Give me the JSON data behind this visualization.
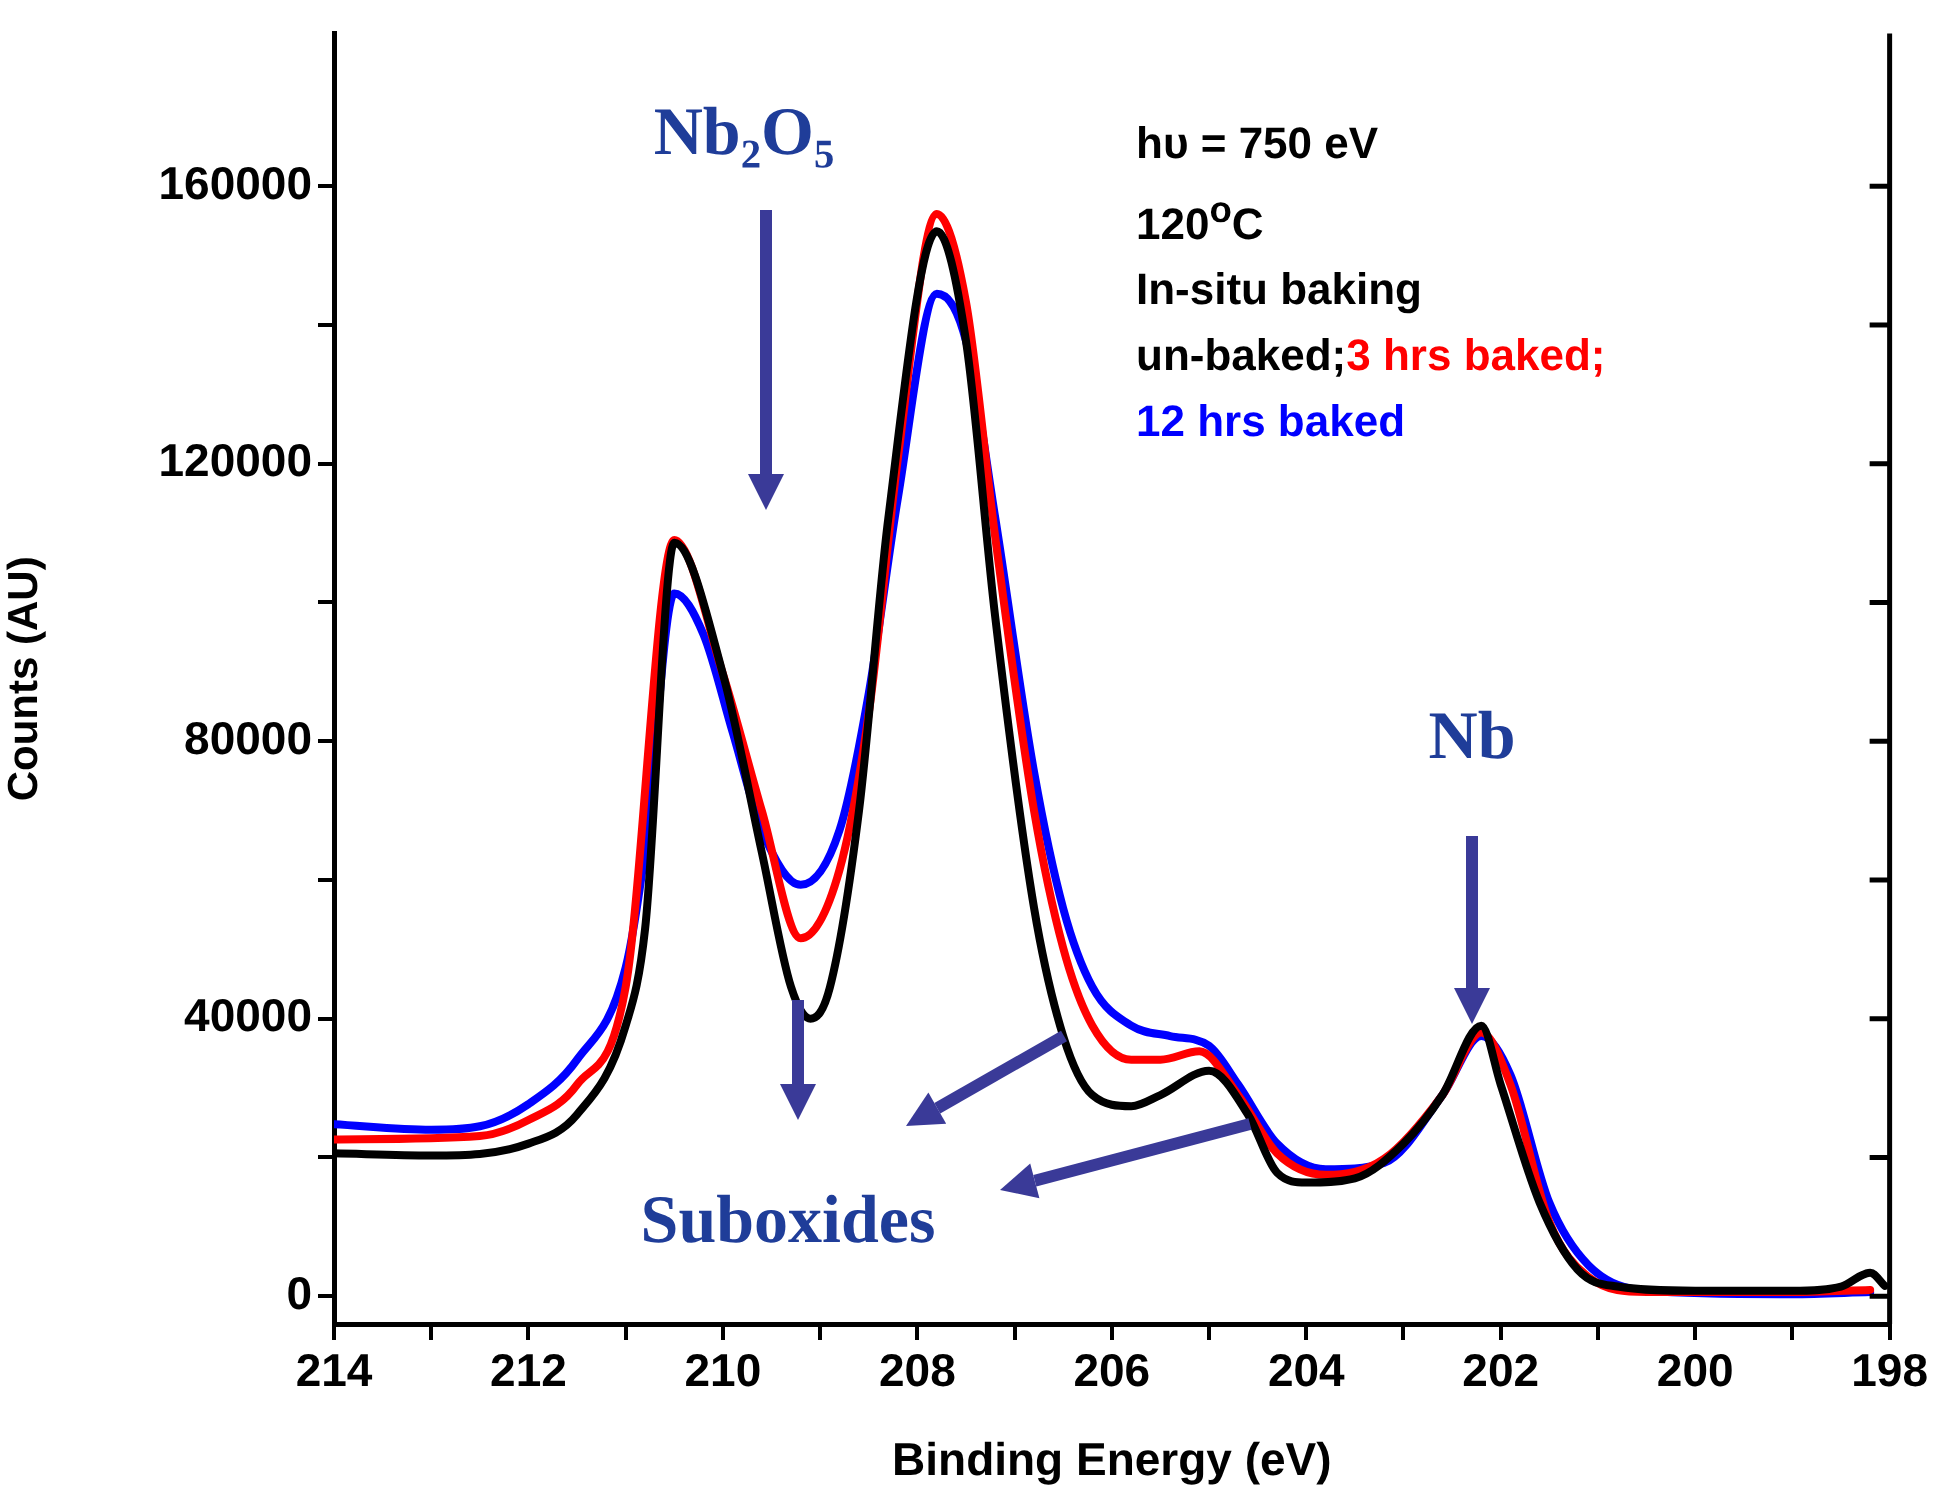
{
  "chart_data": {
    "type": "line",
    "xlabel": "Binding Energy (eV)",
    "ylabel": "Counts (AU)",
    "xlim": [
      214,
      198
    ],
    "xticks": [
      214,
      {
        "value": 213,
        "label": null
      },
      212,
      {
        "value": 211,
        "label": null
      },
      210,
      {
        "value": 209,
        "label": null
      },
      208,
      {
        "value": 207,
        "label": null
      },
      206,
      {
        "value": 205,
        "label": null
      },
      204,
      {
        "value": 203,
        "label": null
      },
      202,
      {
        "value": 201,
        "label": null
      },
      200,
      {
        "value": 199,
        "label": null
      },
      198
    ],
    "ylim": [
      -4000,
      182000
    ],
    "yticks": [
      0,
      {
        "value": 20000,
        "label": null
      },
      40000,
      {
        "value": 60000,
        "label": null
      },
      80000,
      {
        "value": 100000,
        "label": null
      },
      120000,
      {
        "value": 140000,
        "label": null
      },
      160000
    ],
    "grid": false,
    "legend": "top right",
    "marker": "none",
    "line_style": "solid",
    "annotations": [
      "Nb₂O₅",
      "Nb",
      {
        "text": "Suboxides",
        "x": 206.5,
        "y": 37500
      },
      "hυ = 750 eV",
      "120$^{o}$C",
      "In-situ baking"
    ],
    "series": [
      {
        "name": "un-baked;",
        "color": "#000000",
        "x": [
          214,
          213,
          212,
          211.5,
          211,
          210.8,
          210.5,
          210,
          209.6,
          209.3,
          209.1,
          208.9,
          208.6,
          208.3,
          207.8,
          207.5,
          207.2,
          206.8,
          206.5,
          206.2,
          205.8,
          205.5,
          205,
          204.6,
          204.3,
          204,
          203.5,
          203,
          202.6,
          202.2,
          202,
          201.6,
          201.2,
          200.8,
          200,
          199,
          198.5,
          198.2,
          198.05
        ],
        "values": [
          20600,
          20300,
          22000,
          26200,
          39000,
          53000,
          108600,
          89700,
          64000,
          44600,
          40000,
          44500,
          70000,
          112000,
          153500,
          137700,
          98000,
          56000,
          37500,
          29000,
          27400,
          29000,
          32500,
          26200,
          17800,
          16400,
          17000,
          22000,
          29000,
          39000,
          30500,
          13500,
          3700,
          1400,
          800,
          800,
          1400,
          3400,
          1500
        ]
      },
      {
        "name": "3 hrs baked;",
        "color": "#ff0000",
        "x": [
          214,
          212.5,
          212,
          211.5,
          211,
          210.5,
          210,
          209.6,
          209.2,
          208.8,
          208.5,
          208.2,
          207.8,
          207.5,
          207.2,
          206.8,
          206.5,
          206.2,
          205.8,
          205.5,
          205.1,
          204.7,
          204.3,
          203.8,
          203.2,
          202.6,
          202.2,
          201.9,
          201.5,
          201.1,
          200.5,
          199,
          198.2
        ],
        "values": [
          22600,
          23100,
          25400,
          30500,
          44600,
          109000,
          89700,
          70000,
          51600,
          61500,
          84000,
          120800,
          156000,
          143300,
          109500,
          70000,
          50200,
          39000,
          34100,
          34100,
          35300,
          29000,
          20600,
          17500,
          19800,
          29000,
          38000,
          30500,
          10700,
          2800,
          600,
          600,
          900
        ]
      },
      {
        "name": "12 hrs baked",
        "color": "#0000ff",
        "x": [
          214,
          213,
          212.5,
          212,
          211.5,
          211,
          210.8,
          210.5,
          210.2,
          209.9,
          209.6,
          209.2,
          208.8,
          208.5,
          208.2,
          207.8,
          207.5,
          207.2,
          206.8,
          206.5,
          206.2,
          205.8,
          205.4,
          205,
          204.7,
          204.3,
          203.8,
          203.2,
          202.6,
          202.2,
          201.9,
          201.5,
          201.1,
          200.5,
          199,
          198.2
        ],
        "values": [
          24800,
          24000,
          24500,
          27700,
          34100,
          47400,
          64300,
          101300,
          95400,
          81300,
          67200,
          59300,
          67200,
          86900,
          115100,
          144500,
          137700,
          112300,
          75600,
          55900,
          44600,
          39000,
          37500,
          36100,
          30500,
          22000,
          18300,
          19200,
          29000,
          37500,
          31900,
          13500,
          4500,
          800,
          300,
          600
        ]
      }
    ]
  }
}
